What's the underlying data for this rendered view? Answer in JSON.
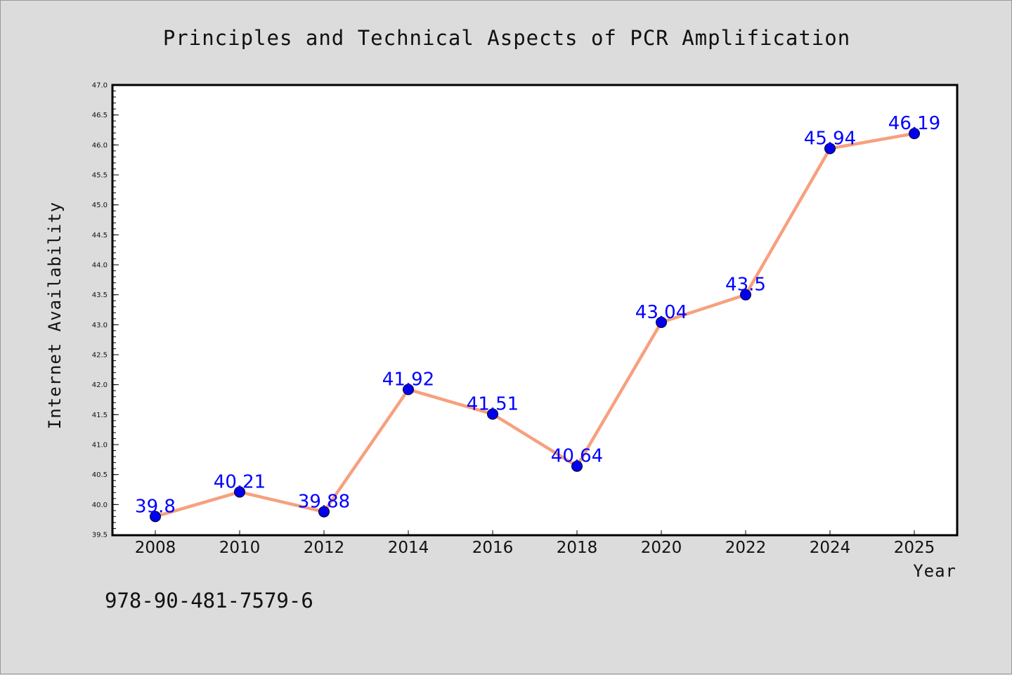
{
  "chart_data": {
    "type": "line",
    "title": "Principles and Technical Aspects of PCR Amplification",
    "xlabel": "Year",
    "ylabel": "Internet Availability",
    "x": [
      "2008",
      "2010",
      "2012",
      "2014",
      "2016",
      "2018",
      "2020",
      "2022",
      "2024",
      "2025"
    ],
    "series": [
      {
        "values": [
          39.8,
          40.21,
          39.88,
          41.92,
          41.51,
          40.64,
          43.04,
          43.5,
          45.94,
          46.19
        ],
        "labels": [
          "39.8",
          "40.21",
          "39.88",
          "41.92",
          "41.51",
          "40.64",
          "43.04",
          "43.5",
          "45.94",
          "46.19"
        ],
        "line_color": "#f7a07e",
        "marker_color": "#0000ee",
        "label_color": "#0000ff"
      }
    ],
    "ylim": [
      39.5,
      47.0
    ],
    "yticks": [
      "39.5",
      "40.0",
      "40.5",
      "41.0",
      "41.5",
      "42.0",
      "42.5",
      "43.0",
      "43.5",
      "44.0",
      "44.5",
      "45.0",
      "45.5",
      "46.0",
      "46.5",
      "47.0"
    ],
    "grid": false,
    "legend": "none"
  },
  "footer": {
    "isbn": "978-90-481-7579-6"
  },
  "colors": {
    "background": "#dcdcdc",
    "plot_background": "#ffffff",
    "axis": "#000000"
  }
}
